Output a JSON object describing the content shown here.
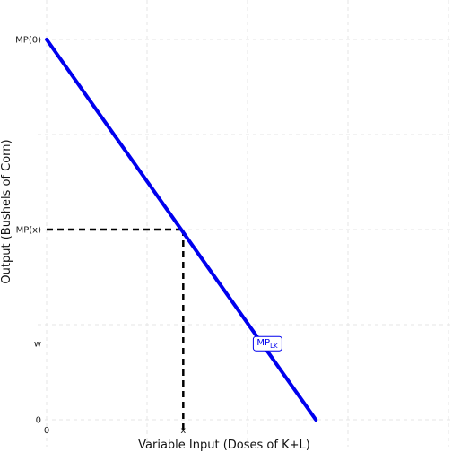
{
  "chart_data": {
    "type": "line",
    "title": "",
    "xlabel": "Variable Input (Doses of K+L)",
    "ylabel": "Output (Bushels of Corn)",
    "xlim": [
      0,
      10
    ],
    "ylim": [
      0,
      10
    ],
    "grid": true,
    "x_ticks": [
      {
        "value": 0,
        "label": "0"
      },
      {
        "value": 3.4,
        "label": "x"
      }
    ],
    "y_ticks": [
      {
        "value": 0,
        "label": "0"
      },
      {
        "value": 2,
        "label": "w"
      },
      {
        "value": 5,
        "label": "MP(x)"
      },
      {
        "value": 10,
        "label": "MP(0)"
      }
    ],
    "series": [
      {
        "name": "MP",
        "label_sub": "LK",
        "color": "#0000ee",
        "x": [
          0,
          6.7
        ],
        "y": [
          10,
          0
        ]
      }
    ],
    "annotation": {
      "x": 3.4,
      "y": 5
    },
    "curve_label": {
      "x": 5.5,
      "y": 2
    }
  }
}
